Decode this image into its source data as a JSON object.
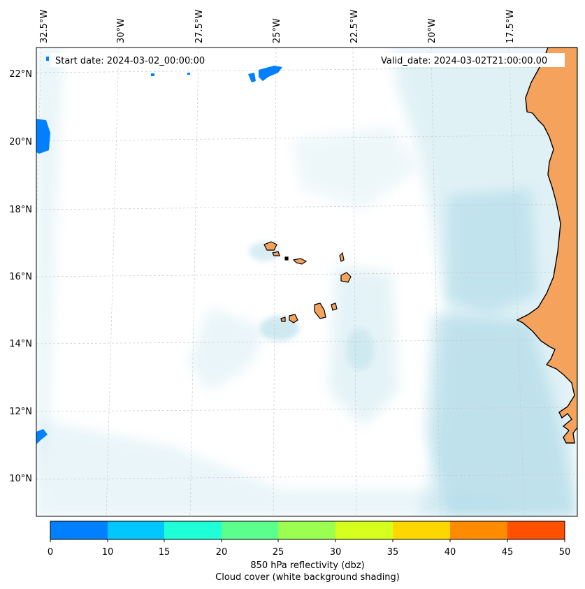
{
  "map": {
    "start_date": "Start date: 2024-03-02_00:00:00",
    "valid_date": "Valid_date: 2024-03-02T21:00:00.00",
    "lon_labels": [
      "32.5°W",
      "30°W",
      "27.5°W",
      "25°W",
      "22.5°W",
      "20°W",
      "17.5°W"
    ],
    "lat_labels": [
      "22°N",
      "20°N",
      "18°N",
      "16°N",
      "14°N",
      "12°N",
      "10°N"
    ],
    "colors": {
      "land": "#f5a35c",
      "cloud": "#a9d8e6",
      "coast": "#000000",
      "grid": "#c8c8c8"
    }
  },
  "colorbar": {
    "ticks": [
      "0",
      "10",
      "15",
      "20",
      "25",
      "30",
      "35",
      "40",
      "45",
      "50"
    ],
    "colors": [
      "#007fff",
      "#00c8ff",
      "#1effd7",
      "#5aff8c",
      "#9bff50",
      "#d7ff1e",
      "#ffd700",
      "#ff8c00",
      "#ff4f00"
    ],
    "label": "850 hPa reflectivity (dbz)",
    "sublabel": "Cloud cover (white background shading)"
  }
}
